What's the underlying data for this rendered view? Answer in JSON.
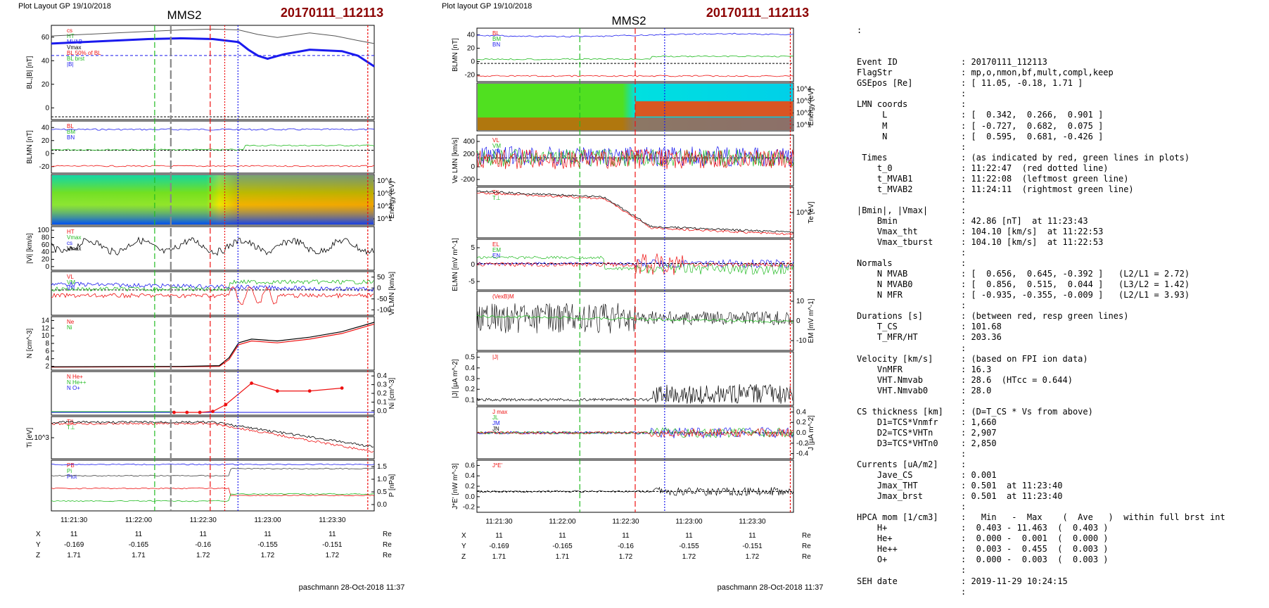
{
  "header": {
    "left_layout": "Plot Layout GP 19/10/2018",
    "mid_layout": "Plot layout GP 19/10/2018",
    "sc": "MMS2",
    "event": "20170111_112113",
    "event_color": "#8b0000",
    "footer": "paschmann 28-Oct-2018 11:37"
  },
  "colors": {
    "blue": "#1a1aee",
    "red": "#ee1111",
    "green": "#22bb22",
    "black": "#000000",
    "dark_red": "#8b0000"
  },
  "time_axis": {
    "ticks": [
      "11:21:30",
      "11:22:00",
      "11:22:30",
      "11:23:00",
      "11:23:30"
    ],
    "ephem": {
      "X": {
        "vals": [
          "11",
          "11",
          "11",
          "11",
          "11"
        ],
        "unit": "Re"
      },
      "Y": {
        "vals": [
          "-0.169",
          "-0.165",
          "-0.16",
          "-0.155",
          "-0.151"
        ],
        "unit": "Re"
      },
      "Z": {
        "vals": [
          "1.71",
          "1.71",
          "1.72",
          "1.72",
          "1.72"
        ],
        "unit": "Re"
      }
    }
  },
  "chart_data": [
    {
      "type": "line",
      "column": "left",
      "panel": 1,
      "ylabel": "BL,|B| [nT]",
      "yticks": [
        "0",
        "20",
        "40",
        "60"
      ],
      "legend": [
        "cs",
        "HT",
        "MVAB",
        "Vmax",
        "BL 50% of BL",
        "BL brst",
        "|B|"
      ],
      "series": [
        {
          "name": "|B|",
          "x": [
            0.0,
            0.2,
            0.4,
            0.5,
            0.58,
            0.64,
            0.7,
            0.8,
            0.88,
            0.95,
            1.0
          ],
          "y": [
            55,
            57,
            59,
            59.5,
            59,
            56,
            54,
            57,
            55,
            52,
            50
          ]
        },
        {
          "name": "BL brst",
          "x": [
            0.0,
            0.1,
            0.2,
            0.3,
            0.4,
            0.5,
            0.58,
            0.61,
            0.64,
            0.67,
            0.72,
            0.8,
            0.9,
            0.95,
            1.0
          ],
          "y": [
            50,
            51,
            52,
            53,
            53.5,
            53,
            51,
            46,
            42,
            40,
            43,
            46,
            45,
            42,
            35
          ]
        }
      ]
    },
    {
      "type": "line",
      "column": "left",
      "panel": 2,
      "ylabel": "BLMN [nT]",
      "yticks": [
        "-20",
        "0",
        "20",
        "40"
      ],
      "legend": [
        "BL",
        "BM",
        "BN"
      ]
    },
    {
      "type": "heatmap",
      "column": "left",
      "panel": 3,
      "ylabel": "Energy (eV)",
      "yticks": [
        "10^1",
        "10^2",
        "10^3",
        "10^4"
      ]
    },
    {
      "type": "line",
      "column": "left",
      "panel": 4,
      "ylabel": "|Vi| [km/s]",
      "yticks": [
        "0",
        "20",
        "40",
        "60",
        "80",
        "100"
      ],
      "legend": [
        "HT",
        "Vmax",
        "cs",
        "Vmax"
      ]
    },
    {
      "type": "line",
      "column": "left",
      "panel": 5,
      "ylabel": "Vi LMN [km/s]",
      "yticks": [
        "-100",
        "-50",
        "0",
        "50"
      ],
      "legend": [
        "VL",
        "VM",
        "VN"
      ]
    },
    {
      "type": "line",
      "column": "left",
      "panel": 6,
      "ylabel": "N [cm^-3]",
      "yticks": [
        "2",
        "4",
        "6",
        "8",
        "10",
        "12",
        "14"
      ],
      "legend": [
        "Ne",
        "Ni"
      ],
      "series": [
        {
          "name": "Ne",
          "x": [
            0.0,
            0.4,
            0.52,
            0.55,
            0.58,
            0.62,
            0.7,
            0.8,
            0.9,
            1.0
          ],
          "y": [
            1.0,
            1.1,
            1.2,
            3.0,
            7.0,
            8.0,
            7.5,
            8.5,
            10,
            12.5
          ]
        },
        {
          "name": "Ni",
          "x": [
            0.0,
            0.4,
            0.52,
            0.55,
            0.58,
            0.62,
            0.7,
            0.8,
            0.9,
            1.0
          ],
          "y": [
            1.1,
            1.2,
            1.4,
            3.5,
            7.5,
            8.5,
            8.0,
            9.0,
            10.5,
            13
          ]
        }
      ]
    },
    {
      "type": "line",
      "column": "left",
      "panel": 7,
      "ylabel": "Ni [cm^-3]",
      "yticks": [
        "0.0",
        "0.1",
        "0.2",
        "0.3",
        "0.4"
      ],
      "legend": [
        "N He+",
        "N He++",
        "N O+"
      ],
      "series": [
        {
          "name": "N He++",
          "x": [
            0.38,
            0.42,
            0.46,
            0.5,
            0.54,
            0.62,
            0.7,
            0.8,
            0.9
          ],
          "y": [
            0.0,
            0.0,
            0.0,
            0.01,
            0.08,
            0.3,
            0.22,
            0.22,
            0.25
          ]
        }
      ]
    },
    {
      "type": "line",
      "column": "left",
      "panel": 8,
      "ylabel": "Ti [eV]",
      "yticks": [
        "10^3"
      ],
      "legend": [
        "T||",
        "T⊥"
      ]
    },
    {
      "type": "line",
      "column": "left",
      "panel": 9,
      "ylabel": "P [nPa]",
      "yticks": [
        "0.0",
        "0.5",
        "1.0",
        "1.5"
      ],
      "legend": [
        "PB",
        "Pi",
        "Ptot"
      ]
    },
    {
      "type": "line",
      "column": "mid",
      "panel": 1,
      "ylabel": "BLMN [nT]",
      "yticks": [
        "-20",
        "0",
        "20",
        "40"
      ],
      "legend": [
        "BL",
        "BM",
        "BN"
      ]
    },
    {
      "type": "heatmap",
      "column": "mid",
      "panel": 2,
      "ylabel": "Energy (eV)",
      "yticks": [
        "10^1",
        "10^2",
        "10^3",
        "10^4"
      ]
    },
    {
      "type": "line",
      "column": "mid",
      "panel": 3,
      "ylabel": "Ve LMN [km/s]",
      "yticks": [
        "-200",
        "0",
        "200",
        "400"
      ],
      "legend": [
        "VL",
        "VM",
        "VN"
      ]
    },
    {
      "type": "line",
      "column": "mid",
      "panel": 4,
      "ylabel": "Te [eV]",
      "yticks": [
        "10^2"
      ],
      "legend": [
        "T||",
        "T⊥"
      ]
    },
    {
      "type": "line",
      "column": "mid",
      "panel": 5,
      "ylabel": "ELMN [mV m^-1]",
      "yticks": [
        "-5",
        "0",
        "5"
      ],
      "legend": [
        "EL",
        "EM",
        "EN"
      ]
    },
    {
      "type": "line",
      "column": "mid",
      "panel": 6,
      "ylabel": "EM [mV m^-1]",
      "yticks": [
        "-10",
        "0",
        "10"
      ],
      "legend": [
        "(VexB)M"
      ]
    },
    {
      "type": "line",
      "column": "mid",
      "panel": 7,
      "ylabel": "|J| [µA m^-2]",
      "yticks": [
        "0.1",
        "0.2",
        "0.3",
        "0.4",
        "0.5"
      ],
      "legend": [
        "|J|"
      ]
    },
    {
      "type": "line",
      "column": "mid",
      "panel": 8,
      "ylabel": "J [µA m^-2]",
      "yticks": [
        "-0.4",
        "-0.2",
        "0.0",
        "0.2",
        "0.4"
      ],
      "legend": [
        "J max",
        "JL",
        "JM",
        "JN"
      ]
    },
    {
      "type": "line",
      "column": "mid",
      "panel": 9,
      "ylabel": "J*E' [nW m^-3]",
      "yticks": [
        "-0.2",
        "0.0",
        "0.2",
        "0.4",
        "0.6"
      ],
      "legend": [
        "J*E'"
      ]
    }
  ],
  "info": {
    "colon": ":",
    "rows": [
      {
        "k": "Event ID",
        "v": ": 20170111_112113"
      },
      {
        "k": "FlagStr",
        "v": ": mp,o,nmon,bf,mult,compl,keep"
      },
      {
        "k": "GSEpos [Re]",
        "v": ": [ 11.05, -0.18, 1.71 ]"
      },
      {
        "k": "",
        "v": ":"
      },
      {
        "k": "LMN coords",
        "v": ":"
      },
      {
        "k": "     L",
        "v": ": [  0.342,  0.266,  0.901 ]"
      },
      {
        "k": "     M",
        "v": ": [ -0.727,  0.682,  0.075 ]"
      },
      {
        "k": "     N",
        "v": ": [  0.595,  0.681, -0.426 ]"
      },
      {
        "k": "",
        "v": ":"
      },
      {
        "k": " Times",
        "v": ": (as indicated by red, green lines in plots)"
      },
      {
        "k": "    t_0",
        "v": ": 11:22:47  (red dotted line)"
      },
      {
        "k": "    t_MVAB1",
        "v": ": 11:22:08  (leftmost green line)"
      },
      {
        "k": "    t_MVAB2",
        "v": ": 11:24:11  (rightmost green line)"
      },
      {
        "k": "",
        "v": ":"
      },
      {
        "k": "|Bmin|, |Vmax|",
        "v": ":"
      },
      {
        "k": "    Bmin",
        "v": ": 42.86 [nT]  at 11:23:43"
      },
      {
        "k": "    Vmax_tht",
        "v": ": 104.10 [km/s]  at 11:22:53"
      },
      {
        "k": "    Vmax_tburst",
        "v": ": 104.10 [km/s]  at 11:22:53"
      },
      {
        "k": "",
        "v": ":"
      },
      {
        "k": "Normals",
        "v": ":"
      },
      {
        "k": "    N MVAB",
        "v": ": [  0.656,  0.645, -0.392 ]   (L2/L1 = 2.72)"
      },
      {
        "k": "    N MVAB0",
        "v": ": [  0.856,  0.515,  0.044 ]   (L3/L2 = 1.42)"
      },
      {
        "k": "    N MFR",
        "v": ": [ -0.935, -0.355, -0.009 ]   (L2/L1 = 3.93)"
      },
      {
        "k": "",
        "v": ":"
      },
      {
        "k": "Durations [s]",
        "v": ": (between red, resp green lines)"
      },
      {
        "k": "    T_CS",
        "v": ": 101.68"
      },
      {
        "k": "    T_MFR/HT",
        "v": ": 203.36"
      },
      {
        "k": "",
        "v": ":"
      },
      {
        "k": "Velocity [km/s]",
        "v": ": (based on FPI ion data)"
      },
      {
        "k": "    VnMFR",
        "v": ": 16.3"
      },
      {
        "k": "    VHT.Nmvab",
        "v": ": 28.6  (HTcc = 0.644)"
      },
      {
        "k": "    VHT.Nmvab0",
        "v": ": 28.0"
      },
      {
        "k": "",
        "v": ":"
      },
      {
        "k": "CS thickness [km]",
        "v": ": (D=T_CS * Vs from above)"
      },
      {
        "k": "    D1=TCS*Vnmfr",
        "v": ": 1,660"
      },
      {
        "k": "    D2=TCS*VHTn",
        "v": ": 2,907"
      },
      {
        "k": "    D3=TCS*VHTn0",
        "v": ": 2,850"
      },
      {
        "k": "",
        "v": ":"
      },
      {
        "k": "Currents [uA/m2]",
        "v": ":"
      },
      {
        "k": "    Jave_CS",
        "v": ": 0.001"
      },
      {
        "k": "    Jmax_THT",
        "v": ": 0.501  at 11:23:40"
      },
      {
        "k": "    Jmax_brst",
        "v": ": 0.501  at 11:23:40"
      },
      {
        "k": "",
        "v": ":"
      },
      {
        "k": "HPCA mom [1/cm3]",
        "v": ":   Min   -  Max    (  Ave   )  within full brst int"
      },
      {
        "k": "    H+",
        "v": ":  0.403 - 11.463  (  0.403 )"
      },
      {
        "k": "    He+",
        "v": ":  0.000 -  0.001  (  0.000 )"
      },
      {
        "k": "    He++",
        "v": ":  0.003 -  0.455  (  0.003 )"
      },
      {
        "k": "    O+",
        "v": ":  0.000 -  0.003  (  0.003 )"
      },
      {
        "k": "",
        "v": ":"
      },
      {
        "k": "SEH date",
        "v": ": 2019-11-29 10:24:15"
      },
      {
        "k": "",
        "v": ":"
      }
    ]
  }
}
